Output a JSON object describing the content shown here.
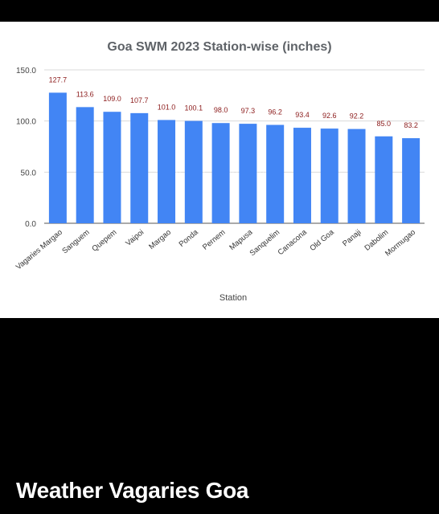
{
  "caption": "Weather Vagaries Goa",
  "chart_data": {
    "type": "bar",
    "title": "Goa SWM 2023 Station-wise (inches)",
    "xlabel": "Station",
    "ylabel": "",
    "watermark": "Weather Vagaries Goa",
    "categories": [
      "Vagaries Margao",
      "Sanguem",
      "Quepem",
      "Vaipoi",
      "Margao",
      "Ponda",
      "Pernem",
      "Mapusa",
      "Sanquelim",
      "Canacona",
      "Old Goa",
      "Panaji",
      "Dabolim",
      "Mormugao"
    ],
    "values": [
      127.7,
      113.6,
      109.0,
      107.7,
      101.0,
      100.1,
      98.0,
      97.3,
      96.2,
      93.4,
      92.6,
      92.2,
      85.0,
      83.2
    ],
    "data_labels": [
      "127.7",
      "113.6",
      "109.0",
      "107.7",
      "101.0",
      "100.1",
      "98.0",
      "97.3",
      "96.2",
      "93.4",
      "92.6",
      "92.2",
      "85.0",
      "83.2"
    ],
    "yticks": [
      0,
      50,
      100,
      150
    ],
    "ytick_labels": [
      "0.0",
      "50.0",
      "100.0",
      "150.0"
    ],
    "ylim": [
      0,
      150
    ],
    "grid": true,
    "legend": "none",
    "colors": {
      "bar": "#4285f4",
      "data_label": "#8b1a1a",
      "title": "#5f6368",
      "grid": "#d9d9d9",
      "axis_text": "#444444"
    }
  }
}
